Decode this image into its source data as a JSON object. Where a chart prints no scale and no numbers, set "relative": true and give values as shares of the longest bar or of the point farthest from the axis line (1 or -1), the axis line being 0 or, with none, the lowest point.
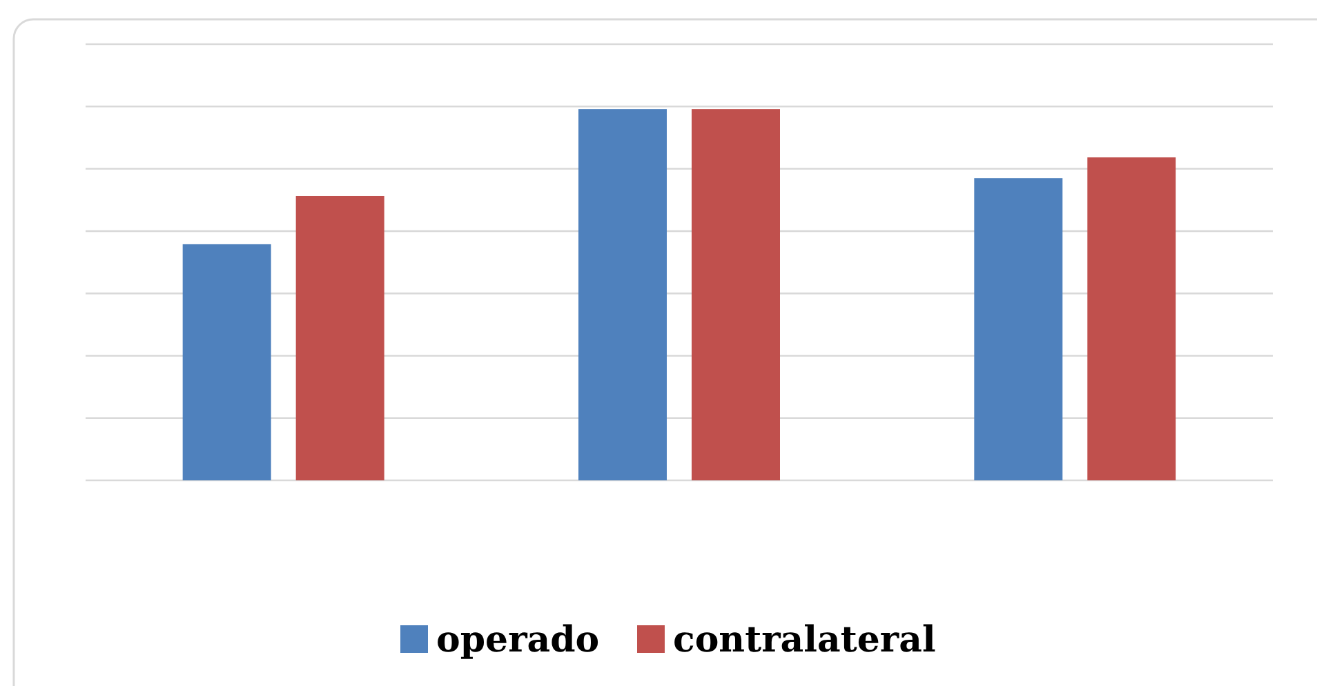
{
  "chart_data": {
    "type": "bar",
    "relative": true,
    "categories": [
      null,
      null,
      null
    ],
    "series": [
      {
        "name": "operado",
        "color": "#4f81bd",
        "values": [
          0.636,
          1,
          0.814
        ]
      },
      {
        "name": "contralateral",
        "color": "#c0504d",
        "values": [
          0.766,
          1,
          0.87
        ]
      }
    ],
    "grid": "y",
    "legend": "bottom"
  }
}
